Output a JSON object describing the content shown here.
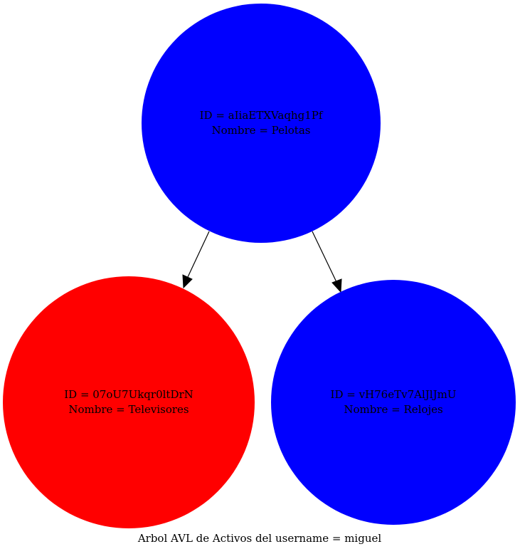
{
  "graph": {
    "type": "avl-tree",
    "caption": "Arbol AVL de Activos del username = miguel",
    "nodes": [
      {
        "key": "root",
        "id_line": "ID = aIiaETXVaqhg1Pf",
        "name_line": "Nombre = Pelotas",
        "fill": "#0000ff"
      },
      {
        "key": "left",
        "id_line": "ID = 07oU7Ukqr0ltDrN",
        "name_line": "Nombre = Televisores",
        "fill": "#ff0000"
      },
      {
        "key": "right",
        "id_line": "ID = vH76eTv7AlJlJmU",
        "name_line": "Nombre = Relojes",
        "fill": "#0000ff"
      }
    ],
    "edges": [
      {
        "from": "root",
        "to": "left"
      },
      {
        "from": "root",
        "to": "right"
      }
    ],
    "edge_color": "#000000"
  }
}
